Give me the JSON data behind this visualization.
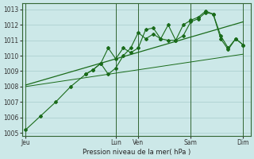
{
  "bg_color": "#cce8e8",
  "line_color": "#1a6b1a",
  "grid_color": "#a8cccc",
  "ylabel_ticks": [
    1005,
    1006,
    1007,
    1008,
    1009,
    1010,
    1011,
    1012,
    1013
  ],
  "xlabel": "Pression niveau de la mer( hPa )",
  "xtick_labels": [
    "Jeu",
    "",
    "Lun",
    "Ven",
    "",
    "Sam",
    "",
    "Dim"
  ],
  "xtick_positions": [
    0,
    8,
    12,
    15,
    19,
    22,
    25,
    29
  ],
  "series1_x": [
    0,
    2,
    4,
    6,
    8,
    9,
    10,
    11,
    12,
    13,
    14,
    15,
    16,
    17,
    18,
    19,
    20,
    21,
    22,
    23,
    24,
    25,
    26,
    27,
    28,
    29
  ],
  "series1_y": [
    1005.2,
    1006.1,
    1007.0,
    1008.0,
    1008.8,
    1009.1,
    1009.5,
    1010.5,
    1009.8,
    1010.5,
    1010.2,
    1010.5,
    1011.7,
    1011.8,
    1011.1,
    1012.0,
    1011.0,
    1011.3,
    1012.2,
    1012.4,
    1012.8,
    1012.7,
    1011.3,
    1010.5,
    1011.1,
    1010.7
  ],
  "series2_x": [
    8,
    9,
    10,
    11,
    12,
    13,
    14,
    15,
    16,
    17,
    18,
    19,
    20,
    21,
    22,
    23,
    24,
    25,
    26,
    27,
    28,
    29
  ],
  "series2_y": [
    1008.8,
    1009.1,
    1009.5,
    1008.8,
    1009.2,
    1010.0,
    1010.5,
    1011.5,
    1011.1,
    1011.4,
    1011.1,
    1011.0,
    1011.0,
    1012.0,
    1012.3,
    1012.5,
    1012.9,
    1012.7,
    1011.1,
    1010.4,
    1011.1,
    1010.7
  ],
  "trend1_x": [
    0,
    29
  ],
  "trend1_y": [
    1008.1,
    1012.2
  ],
  "trend2_x": [
    0,
    29
  ],
  "trend2_y": [
    1008.0,
    1010.1
  ],
  "ylim": [
    1004.8,
    1013.4
  ],
  "xlim": [
    -0.5,
    30
  ]
}
